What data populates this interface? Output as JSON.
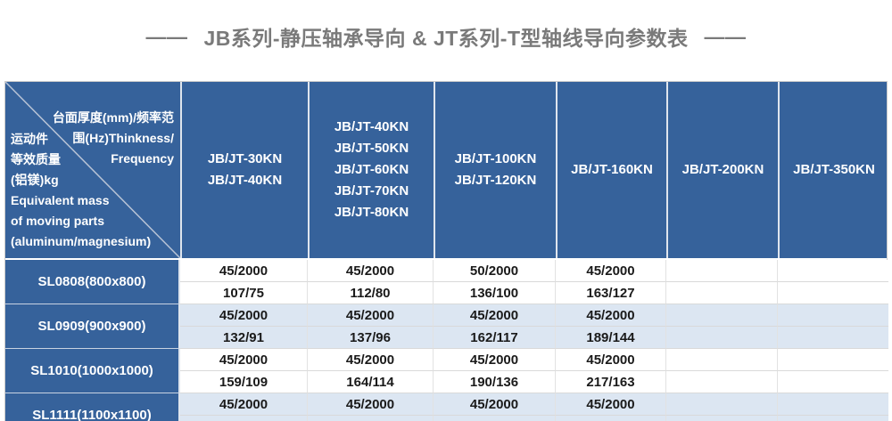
{
  "title": {
    "dash_left": "——",
    "text": "JB系列-静压轴承导向 & JT系列-T型轴线导向参数表",
    "dash_right": "——",
    "color": "#7a7a7a"
  },
  "table": {
    "colors": {
      "header_bg": "#36629b",
      "header_text": "#ffffff",
      "band_light": "#dce6f2",
      "band_white": "#ffffff",
      "grid_line": "#d9d9d9",
      "divider_light": "#dfe5ee",
      "cell_text": "#1a1a1a"
    },
    "corner": {
      "top_right_lines": [
        "台面厚度(mm)/频率范",
        "围(Hz)Thinkness/",
        "Frequency"
      ],
      "bottom_left_lines": [
        "运动件",
        "等效质量",
        "(铝镁)kg",
        "Equivalent mass",
        "of moving parts",
        "(aluminum/magnesium)"
      ]
    },
    "columns": [
      {
        "lines": [
          "JB/JT-30KN",
          "JB/JT-40KN"
        ]
      },
      {
        "lines": [
          "JB/JT-40KN",
          "JB/JT-50KN",
          "JB/JT-60KN",
          "JB/JT-70KN",
          "JB/JT-80KN"
        ]
      },
      {
        "lines": [
          "JB/JT-100KN",
          "JB/JT-120KN"
        ]
      },
      {
        "lines": [
          "JB/JT-160KN"
        ]
      },
      {
        "lines": [
          "JB/JT-200KN"
        ]
      },
      {
        "lines": [
          "JB/JT-350KN"
        ]
      }
    ],
    "rows": [
      {
        "label": "SL0808(800x800)",
        "band": "white",
        "sub_rows": [
          [
            "45/2000",
            "45/2000",
            "50/2000",
            "45/2000",
            "",
            ""
          ],
          [
            "107/75",
            "112/80",
            "136/100",
            "163/127",
            "",
            ""
          ]
        ]
      },
      {
        "label": "SL0909(900x900)",
        "band": "light",
        "sub_rows": [
          [
            "45/2000",
            "45/2000",
            "45/2000",
            "45/2000",
            "",
            ""
          ],
          [
            "132/91",
            "137/96",
            "162/117",
            "189/144",
            "",
            ""
          ]
        ]
      },
      {
        "label": "SL1010(1000x1000)",
        "band": "white",
        "sub_rows": [
          [
            "45/2000",
            "45/2000",
            "45/2000",
            "45/2000",
            "",
            ""
          ],
          [
            "159/109",
            "164/114",
            "190/136",
            "217/163",
            "",
            ""
          ]
        ]
      },
      {
        "label": "SL1111(1100x1100)",
        "band": "light",
        "sub_rows": [
          [
            "45/2000",
            "45/2000",
            "45/2000",
            "45/2000",
            "",
            ""
          ],
          [
            "",
            "",
            "",
            "",
            "",
            ""
          ]
        ]
      }
    ]
  }
}
